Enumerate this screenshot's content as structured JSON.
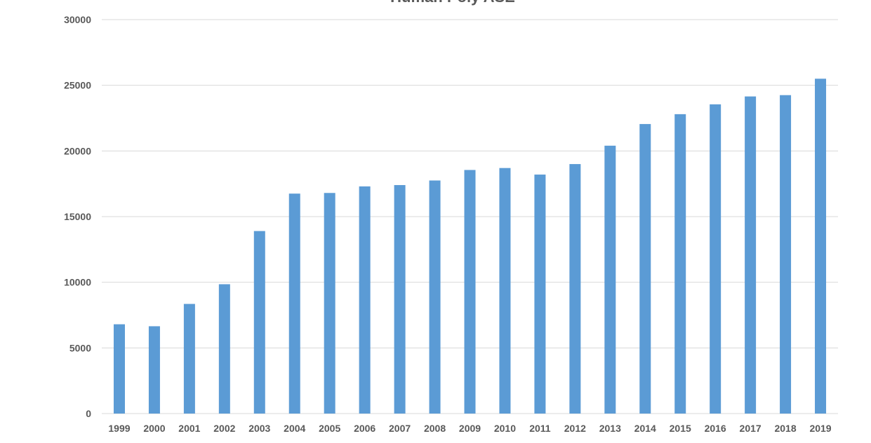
{
  "chart_data": {
    "type": "bar",
    "title": "Human Poly ASE",
    "xlabel": "",
    "ylabel": "",
    "categories": [
      "1999",
      "2000",
      "2001",
      "2002",
      "2003",
      "2004",
      "2005",
      "2006",
      "2007",
      "2008",
      "2009",
      "2010",
      "2011",
      "2012",
      "2013",
      "2014",
      "2015",
      "2016",
      "2017",
      "2018",
      "2019"
    ],
    "values": [
      6800,
      6650,
      8350,
      9850,
      13900,
      16750,
      16800,
      17300,
      17400,
      17750,
      18550,
      18700,
      18200,
      19000,
      20400,
      22050,
      22800,
      23550,
      24150,
      24250,
      25500
    ],
    "ylim": [
      0,
      30000
    ],
    "yticks": [
      0,
      5000,
      10000,
      15000,
      20000,
      25000,
      30000
    ],
    "ytick_labels": [
      "0",
      "5000",
      "10000",
      "15000",
      "20000",
      "25000",
      "30000"
    ],
    "bar_color": "#5B9BD5",
    "grid": true,
    "legend": "none"
  },
  "colors": {
    "bar": "#5B9BD5",
    "gridline": "#D9D9D9",
    "text": "#595959"
  }
}
